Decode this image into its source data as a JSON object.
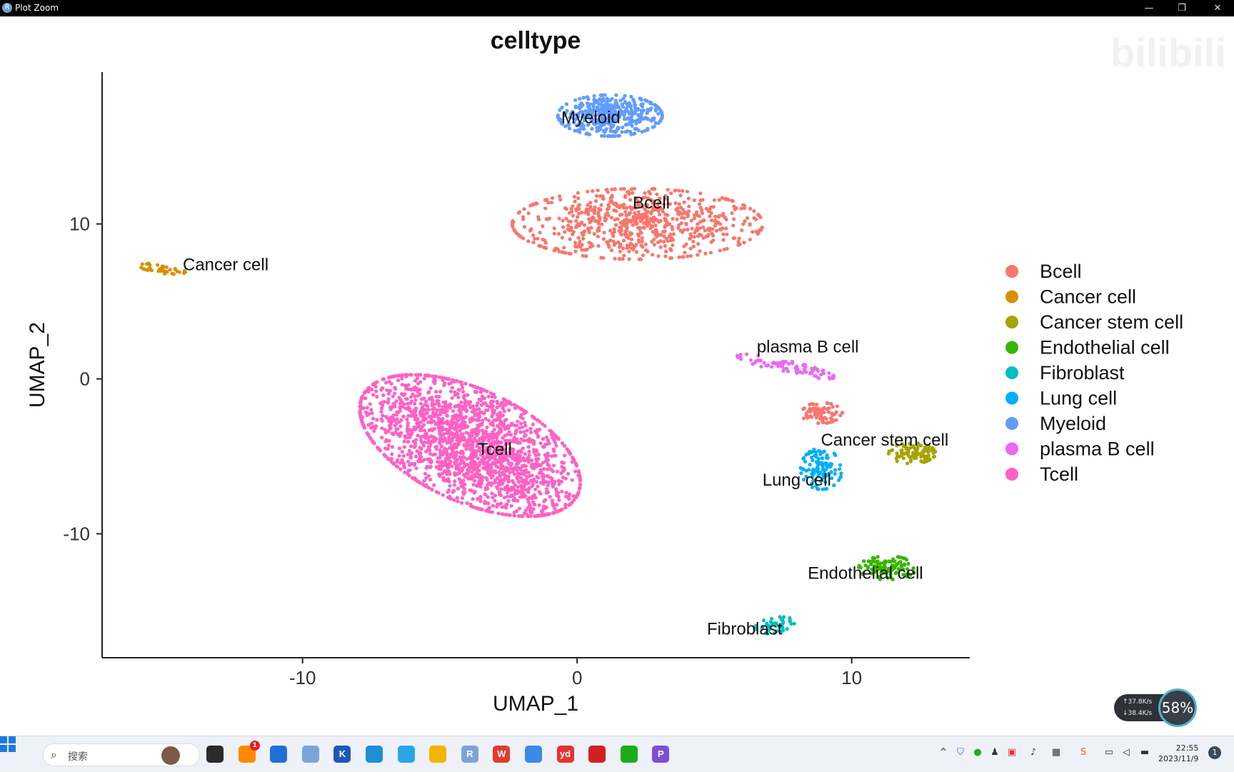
{
  "window": {
    "title": "Plot Zoom",
    "app_icon_glyph": "R",
    "minimize_glyph": "—",
    "maximize_glyph": "❐",
    "close_glyph": "✕"
  },
  "chart_data": {
    "type": "scatter",
    "title": "celltype",
    "xlabel": "UMAP_1",
    "ylabel": "UMAP_2",
    "xlim": [
      -17.3,
      14.3
    ],
    "ylim": [
      -18.0,
      19.8
    ],
    "x_ticks": [
      -10,
      0,
      10
    ],
    "x_tick_labels": [
      "-10",
      "0",
      "10"
    ],
    "y_ticks": [
      -10,
      0,
      10
    ],
    "y_tick_labels": [
      "-10",
      "0",
      "10"
    ],
    "grid": false,
    "legend": "right",
    "series": [
      {
        "name": "Bcell",
        "color": "#F8766D",
        "center": [
          2.2,
          10.0
        ],
        "spread": [
          2.4,
          1.2
        ],
        "angle": 0,
        "n": 700,
        "label": "Bcell",
        "label_at": [
          2.7,
          11.0
        ]
      },
      {
        "name": "Cancer cell",
        "color": "#D89000",
        "center": [
          -15.1,
          7.1
        ],
        "spread": [
          0.45,
          0.15
        ],
        "angle": -15,
        "n": 40,
        "label": "Cancer cell",
        "label_at": [
          -12.8,
          7.0
        ]
      },
      {
        "name": "Cancer stem cell",
        "color": "#A3A500",
        "center": [
          12.2,
          -4.8
        ],
        "spread": [
          0.45,
          0.35
        ],
        "angle": 0,
        "n": 90,
        "label": "Cancer stem cell",
        "label_at": [
          11.2,
          -4.3
        ]
      },
      {
        "name": "Endothelial cell",
        "color": "#39B600",
        "center": [
          11.3,
          -12.2
        ],
        "spread": [
          0.55,
          0.4
        ],
        "angle": 0,
        "n": 110,
        "label": "Endothelial cell",
        "label_at": [
          10.5,
          -12.9
        ]
      },
      {
        "name": "Fibroblast",
        "color": "#00BFC4",
        "center": [
          7.2,
          -15.9
        ],
        "spread": [
          0.4,
          0.25
        ],
        "angle": 25,
        "n": 45,
        "label": "Fibroblast",
        "label_at": [
          6.1,
          -16.5
        ]
      },
      {
        "name": "Lung cell",
        "color": "#00B0F6",
        "center": [
          8.9,
          -5.8
        ],
        "spread": [
          0.4,
          0.7
        ],
        "angle": 0,
        "n": 110,
        "label": "Lung cell",
        "label_at": [
          8.0,
          -6.9
        ]
      },
      {
        "name": "Myeloid",
        "color": "#619CFF",
        "center": [
          1.2,
          17.0
        ],
        "spread": [
          1.0,
          0.7
        ],
        "angle": 0,
        "n": 400,
        "label": "Myeloid",
        "label_at": [
          0.5,
          16.5
        ]
      },
      {
        "name": "plasma B cell",
        "color": "#E76BF3",
        "center": [
          7.6,
          0.8
        ],
        "spread": [
          1.0,
          0.2
        ],
        "angle": -22,
        "n": 90,
        "label": "plasma B cell",
        "label_at": [
          8.4,
          1.7
        ]
      },
      {
        "name": "Tcell",
        "color": "#FF61C3",
        "center": [
          -3.9,
          -4.3
        ],
        "spread": [
          2.8,
          1.55
        ],
        "angle": -52,
        "n": 2000,
        "label": "Tcell",
        "label_at": [
          -3.0,
          -4.9
        ]
      }
    ],
    "extra_clusters": [
      {
        "series": "Bcell",
        "center": [
          8.9,
          -2.2
        ],
        "spread": [
          0.4,
          0.35
        ],
        "angle": 0,
        "n": 80
      }
    ]
  },
  "watermark": {
    "text": "bilibili"
  },
  "speed_widget": {
    "up": "↑37.8K/s",
    "down": "↓38.4K/s",
    "percent": "58%"
  },
  "taskbar": {
    "search_placeholder": "搜索",
    "search_icon": "search-icon",
    "pinned_apps": [
      {
        "name": "file-manager-icon",
        "color": "#2b2b2b"
      },
      {
        "name": "notification-app-icon",
        "color": "#ff8a00",
        "badge": "1"
      },
      {
        "name": "store-icon",
        "color": "#1f6fd6"
      },
      {
        "name": "chart-app-icon",
        "color": "#7aa6d6"
      },
      {
        "name": "nk-app-icon",
        "color": "#1e57b8",
        "glyph": "K"
      },
      {
        "name": "edge-icon",
        "color": "#1d8fd8"
      },
      {
        "name": "browser-icon",
        "color": "#2aa6e8"
      },
      {
        "name": "folder-icon",
        "color": "#f4b400"
      },
      {
        "name": "r-app-icon",
        "color": "#7ea3d6",
        "glyph": "R"
      },
      {
        "name": "wps-icon",
        "color": "#e23b2e",
        "glyph": "W"
      },
      {
        "name": "notepad-icon",
        "color": "#3a8be6"
      },
      {
        "name": "youdao-icon",
        "color": "#e8312f",
        "glyph": "yd"
      },
      {
        "name": "record-icon",
        "color": "#d02020"
      },
      {
        "name": "wechat-icon",
        "color": "#1aad19"
      },
      {
        "name": "p-app-icon",
        "color": "#7b4fd6",
        "glyph": "P"
      }
    ],
    "clock_time": "22:55",
    "clock_date": "2023/11/9",
    "notification_count": "1"
  }
}
